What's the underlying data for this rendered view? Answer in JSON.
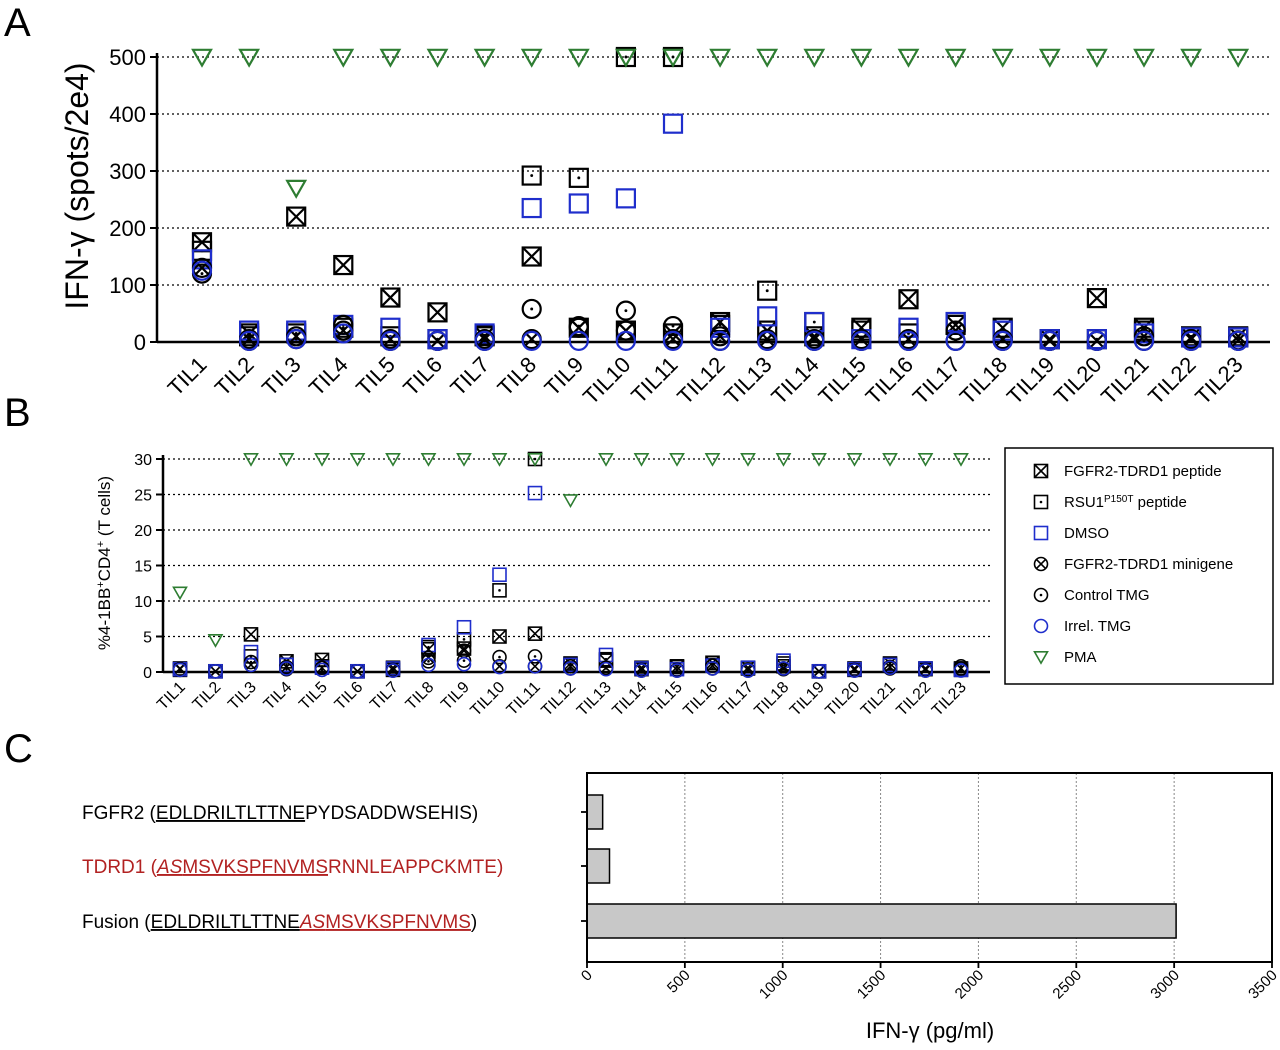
{
  "markers": {
    "ccross": {
      "label": "FGFR2-TDRD1 peptide",
      "color": "#000000"
    },
    "cdot": {
      "label": "RSU1P150T peptide",
      "color": "#000000",
      "label_main": "RSU1",
      "label_sup": "P150T",
      "label_tail": " peptide"
    },
    "square": {
      "label": "DMSO",
      "color": "#1f2ecc"
    },
    "ocross": {
      "label": "FGFR2-TDRD1 minigene",
      "color": "#000000"
    },
    "odot": {
      "label": "Control TMG",
      "color": "#000000"
    },
    "circle": {
      "label": "Irrel. TMG",
      "color": "#1f2ecc"
    },
    "tri": {
      "label": "PMA",
      "color": "#2e7d32"
    }
  },
  "chart_data": [
    {
      "panel": "A",
      "type": "scatter",
      "ylabel": "IFN-γ (spots/2e4)",
      "ylim": [
        0,
        500
      ],
      "yticks": [
        0,
        100,
        200,
        300,
        400,
        500
      ],
      "grid": "horizontal dotted",
      "categories": [
        "TIL1",
        "TIL2",
        "TIL3",
        "TIL4",
        "TIL5",
        "TIL6",
        "TIL7",
        "TIL8",
        "TIL9",
        "TIL10",
        "TIL11",
        "TIL12",
        "TIL13",
        "TIL14",
        "TIL15",
        "TIL16",
        "TIL17",
        "TIL18",
        "TIL19",
        "TIL20",
        "TIL21",
        "TIL22",
        "TIL23"
      ],
      "series": [
        {
          "name": "FGFR2-TDRD1 peptide",
          "marker": "ccross",
          "values": [
            175,
            15,
            220,
            135,
            78,
            52,
            10,
            150,
            25,
            20,
            15,
            35,
            20,
            10,
            25,
            75,
            30,
            25,
            5,
            77,
            25,
            8,
            10
          ]
        },
        {
          "name": "RSU1P150T peptide",
          "marker": "cdot",
          "values": [
            160,
            10,
            15,
            25,
            10,
            5,
            12,
            292,
            288,
            500,
            500,
            30,
            90,
            35,
            20,
            15,
            35,
            20,
            5,
            5,
            20,
            10,
            8
          ]
        },
        {
          "name": "DMSO",
          "marker": "square",
          "values": [
            145,
            20,
            20,
            30,
            25,
            5,
            15,
            235,
            243,
            252,
            383,
            25,
            45,
            35,
            5,
            25,
            35,
            20,
            5,
            5,
            15,
            8,
            8
          ]
        },
        {
          "name": "FGFR2-TDRD1 minigene",
          "marker": "ocross",
          "values": [
            130,
            5,
            10,
            20,
            5,
            2,
            5,
            5,
            25,
            20,
            5,
            10,
            5,
            5,
            5,
            5,
            20,
            5,
            2,
            2,
            10,
            5,
            3
          ]
        },
        {
          "name": "Control TMG",
          "marker": "odot",
          "values": [
            120,
            2,
            5,
            30,
            2,
            2,
            2,
            58,
            28,
            55,
            28,
            2,
            2,
            2,
            2,
            2,
            2,
            2,
            2,
            2,
            2,
            2,
            2
          ]
        },
        {
          "name": "Irrel. TMG",
          "marker": "circle",
          "values": [
            125,
            2,
            5,
            15,
            2,
            2,
            2,
            2,
            2,
            2,
            2,
            2,
            2,
            2,
            2,
            2,
            2,
            2,
            2,
            2,
            2,
            2,
            2
          ]
        },
        {
          "name": "PMA",
          "marker": "tri",
          "values": [
            500,
            500,
            270,
            500,
            500,
            500,
            500,
            500,
            500,
            500,
            500,
            500,
            500,
            500,
            500,
            500,
            500,
            500,
            500,
            500,
            500,
            500,
            500
          ]
        }
      ]
    },
    {
      "panel": "B",
      "type": "scatter",
      "ylabel": "%4-1BB+CD4+ (T cells)",
      "ylim": [
        0,
        30
      ],
      "yticks": [
        0,
        5,
        10,
        15,
        20,
        25,
        30
      ],
      "grid": "horizontal dotted",
      "legend": "right",
      "categories": [
        "TIL1",
        "TIL2",
        "TIL3",
        "TIL4",
        "TIL5",
        "TIL6",
        "TIL7",
        "TIL8",
        "TIL9",
        "TIL10",
        "TIL11",
        "TIL12",
        "TIL13",
        "TIL14",
        "TIL15",
        "TIL16",
        "TIL17",
        "TIL18",
        "TIL19",
        "TIL20",
        "TIL21",
        "TIL22",
        "TIL23"
      ],
      "series": [
        {
          "name": "FGFR2-TDRD1 peptide",
          "marker": "ccross",
          "values": [
            0.5,
            0.1,
            5.3,
            1.5,
            1.7,
            0.1,
            0.6,
            3.2,
            3.3,
            5.0,
            5.4,
            1.2,
            1.6,
            0.6,
            0.7,
            1.3,
            0.6,
            0.8,
            0.1,
            0.5,
            1.2,
            0.5,
            0.5
          ]
        },
        {
          "name": "RSU1P150T peptide",
          "marker": "cdot",
          "values": [
            0.3,
            0.1,
            2.2,
            1.0,
            0.8,
            0.1,
            0.3,
            3.5,
            4.6,
            11.5,
            30,
            1.0,
            1.8,
            0.4,
            0.8,
            1.0,
            0.5,
            1.2,
            0.1,
            0.3,
            1.0,
            0.4,
            0.3
          ]
        },
        {
          "name": "DMSO",
          "marker": "square",
          "values": [
            0.4,
            0.1,
            2.8,
            1.0,
            0.6,
            0.1,
            0.5,
            3.8,
            6.3,
            13.7,
            25.2,
            1.0,
            2.4,
            0.5,
            0.4,
            0.9,
            0.6,
            1.6,
            0.1,
            0.4,
            1.0,
            0.5,
            0.3
          ]
        },
        {
          "name": "FGFR2-TDRD1 minigene",
          "marker": "ocross",
          "values": [
            0.4,
            0.1,
            1.0,
            0.7,
            0.6,
            0.1,
            0.3,
            2.0,
            3.0,
            0.8,
            0.8,
            0.8,
            0.6,
            0.3,
            0.3,
            0.9,
            0.3,
            0.5,
            0.1,
            0.3,
            0.7,
            0.3,
            0.5
          ]
        },
        {
          "name": "Control TMG",
          "marker": "odot",
          "values": [
            0.3,
            0.1,
            1.4,
            0.4,
            0.3,
            0.1,
            0.2,
            1.5,
            1.6,
            2.1,
            2.2,
            0.5,
            0.5,
            0.2,
            0.2,
            0.5,
            0.2,
            0.4,
            0.1,
            0.2,
            0.5,
            0.2,
            0.8
          ]
        },
        {
          "name": "Irrel. TMG",
          "marker": "circle",
          "values": [
            0.3,
            0.1,
            1.0,
            0.5,
            0.3,
            0.1,
            0.2,
            1.0,
            1.1,
            0.7,
            0.8,
            0.5,
            0.4,
            0.2,
            0.2,
            0.5,
            0.2,
            0.5,
            0.1,
            0.2,
            0.6,
            0.2,
            0.2
          ]
        },
        {
          "name": "PMA",
          "marker": "tri",
          "values": [
            11.2,
            4.5,
            30,
            30,
            30,
            30,
            30,
            30,
            30,
            30,
            30,
            24.2,
            30,
            30,
            30,
            30,
            30,
            30,
            30,
            30,
            30,
            30,
            30
          ]
        }
      ]
    },
    {
      "panel": "C",
      "type": "bar",
      "orientation": "horizontal",
      "xlabel": "IFN-γ (pg/ml)",
      "xlim": [
        0,
        3500
      ],
      "xticks": [
        0,
        500,
        1000,
        1500,
        2000,
        2500,
        3000,
        3500
      ],
      "grid": "vertical dotted",
      "bar_color": "#c8c8c8",
      "categories": [
        "FGFR2",
        "TDRD1",
        "Fusion"
      ],
      "values": [
        80,
        115,
        3010
      ]
    }
  ],
  "panel_c_labels": [
    {
      "prefix": "FGFR2 (",
      "underlined": "EDLDRILTLTTNE",
      "rest": "PYDSADDWSEHIS)",
      "color": "#000000"
    },
    {
      "prefix": "TDRD1 (",
      "italic_underlined": "AS",
      "underlined": "MSVKSPFNVMS",
      "rest": "RNNLEAPPCKMTE)",
      "color": "#b22222"
    },
    {
      "prefix": "Fusion (",
      "underlined": "EDLDRILTLTTNE",
      "italic_underlined": "AS",
      "underlined2": "MSVKSPFNVMS",
      "rest": ")",
      "color": "#000000",
      "red_part_color": "#b22222"
    }
  ],
  "panel_letters": [
    "A",
    "B",
    "C"
  ]
}
